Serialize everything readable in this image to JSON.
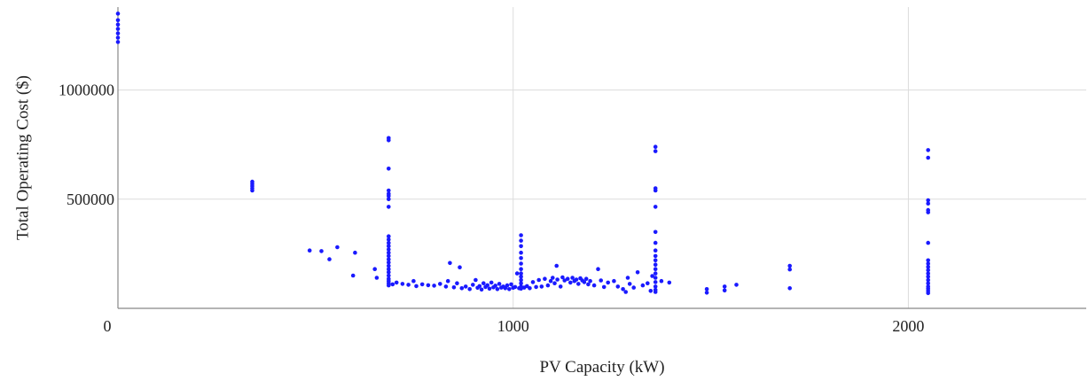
{
  "chart_data": {
    "type": "scatter",
    "xlabel": "PV Capacity (kW)",
    "ylabel": "Total Operating Cost ($)",
    "xlim": [
      0,
      2450
    ],
    "ylim": [
      0,
      1380000
    ],
    "x_ticks": [
      {
        "value": 0,
        "label": "0"
      },
      {
        "value": 1000,
        "label": "1000"
      },
      {
        "value": 2000,
        "label": "2000"
      }
    ],
    "y_ticks": [
      {
        "value": 500000,
        "label": "500000"
      },
      {
        "value": 1000000,
        "label": "1000000"
      }
    ],
    "grid": true,
    "series": [
      {
        "color": "#1a1aff",
        "points": [
          [
            0,
            1350000
          ],
          [
            0,
            1320000
          ],
          [
            0,
            1300000
          ],
          [
            0,
            1280000
          ],
          [
            0,
            1260000
          ],
          [
            0,
            1240000
          ],
          [
            0,
            1220000
          ],
          [
            340,
            580000
          ],
          [
            340,
            570000
          ],
          [
            340,
            560000
          ],
          [
            340,
            550000
          ],
          [
            340,
            540000
          ],
          [
            485,
            265000
          ],
          [
            515,
            262000
          ],
          [
            535,
            225000
          ],
          [
            555,
            280000
          ],
          [
            595,
            150000
          ],
          [
            600,
            255000
          ],
          [
            650,
            180000
          ],
          [
            655,
            140000
          ],
          [
            685,
            780000
          ],
          [
            685,
            770000
          ],
          [
            685,
            640000
          ],
          [
            685,
            540000
          ],
          [
            685,
            525000
          ],
          [
            685,
            515000
          ],
          [
            685,
            500000
          ],
          [
            685,
            465000
          ],
          [
            685,
            330000
          ],
          [
            685,
            315000
          ],
          [
            685,
            300000
          ],
          [
            685,
            285000
          ],
          [
            685,
            270000
          ],
          [
            685,
            255000
          ],
          [
            685,
            240000
          ],
          [
            685,
            225000
          ],
          [
            685,
            210000
          ],
          [
            685,
            195000
          ],
          [
            685,
            180000
          ],
          [
            685,
            165000
          ],
          [
            685,
            150000
          ],
          [
            685,
            135000
          ],
          [
            685,
            125000
          ],
          [
            685,
            115000
          ],
          [
            685,
            105000
          ],
          [
            695,
            110000
          ],
          [
            705,
            118000
          ],
          [
            720,
            112000
          ],
          [
            735,
            108000
          ],
          [
            748,
            125000
          ],
          [
            755,
            102000
          ],
          [
            770,
            110000
          ],
          [
            785,
            106000
          ],
          [
            800,
            104000
          ],
          [
            815,
            112000
          ],
          [
            830,
            100000
          ],
          [
            835,
            125000
          ],
          [
            840,
            208000
          ],
          [
            850,
            96000
          ],
          [
            858,
            115000
          ],
          [
            865,
            188000
          ],
          [
            870,
            92000
          ],
          [
            880,
            100000
          ],
          [
            890,
            88000
          ],
          [
            898,
            108000
          ],
          [
            905,
            130000
          ],
          [
            910,
            94000
          ],
          [
            915,
            102000
          ],
          [
            920,
            86000
          ],
          [
            925,
            115000
          ],
          [
            930,
            98000
          ],
          [
            935,
            106000
          ],
          [
            940,
            90000
          ],
          [
            945,
            118000
          ],
          [
            950,
            96000
          ],
          [
            955,
            104000
          ],
          [
            960,
            88000
          ],
          [
            965,
            112000
          ],
          [
            970,
            95000
          ],
          [
            975,
            100000
          ],
          [
            980,
            92000
          ],
          [
            985,
            105000
          ],
          [
            990,
            88000
          ],
          [
            995,
            110000
          ],
          [
            1000,
            94000
          ],
          [
            1005,
            98000
          ],
          [
            1010,
            160000
          ],
          [
            1015,
            92000
          ],
          [
            1020,
            335000
          ],
          [
            1020,
            310000
          ],
          [
            1020,
            285000
          ],
          [
            1020,
            255000
          ],
          [
            1020,
            230000
          ],
          [
            1020,
            205000
          ],
          [
            1020,
            180000
          ],
          [
            1020,
            160000
          ],
          [
            1020,
            145000
          ],
          [
            1020,
            130000
          ],
          [
            1020,
            115000
          ],
          [
            1020,
            100000
          ],
          [
            1020,
            90000
          ],
          [
            1028,
            95000
          ],
          [
            1035,
            102000
          ],
          [
            1042,
            92000
          ],
          [
            1050,
            120000
          ],
          [
            1058,
            98000
          ],
          [
            1065,
            130000
          ],
          [
            1072,
            100000
          ],
          [
            1080,
            135000
          ],
          [
            1088,
            105000
          ],
          [
            1095,
            125000
          ],
          [
            1100,
            140000
          ],
          [
            1105,
            115000
          ],
          [
            1110,
            195000
          ],
          [
            1112,
            132000
          ],
          [
            1120,
            100000
          ],
          [
            1125,
            142000
          ],
          [
            1130,
            128000
          ],
          [
            1138,
            135000
          ],
          [
            1145,
            118000
          ],
          [
            1150,
            140000
          ],
          [
            1155,
            125000
          ],
          [
            1160,
            132000
          ],
          [
            1165,
            112000
          ],
          [
            1170,
            138000
          ],
          [
            1175,
            128000
          ],
          [
            1180,
            120000
          ],
          [
            1185,
            135000
          ],
          [
            1190,
            110000
          ],
          [
            1195,
            125000
          ],
          [
            1205,
            105000
          ],
          [
            1215,
            180000
          ],
          [
            1222,
            128000
          ],
          [
            1230,
            98000
          ],
          [
            1240,
            118000
          ],
          [
            1255,
            125000
          ],
          [
            1265,
            100000
          ],
          [
            1278,
            88000
          ],
          [
            1285,
            75000
          ],
          [
            1290,
            140000
          ],
          [
            1295,
            112000
          ],
          [
            1305,
            95000
          ],
          [
            1315,
            165000
          ],
          [
            1328,
            105000
          ],
          [
            1340,
            115000
          ],
          [
            1348,
            80000
          ],
          [
            1352,
            148000
          ],
          [
            1360,
            740000
          ],
          [
            1360,
            720000
          ],
          [
            1360,
            550000
          ],
          [
            1360,
            540000
          ],
          [
            1360,
            465000
          ],
          [
            1360,
            350000
          ],
          [
            1360,
            300000
          ],
          [
            1360,
            265000
          ],
          [
            1360,
            240000
          ],
          [
            1360,
            220000
          ],
          [
            1360,
            200000
          ],
          [
            1360,
            180000
          ],
          [
            1360,
            160000
          ],
          [
            1360,
            140000
          ],
          [
            1360,
            120000
          ],
          [
            1360,
            100000
          ],
          [
            1360,
            85000
          ],
          [
            1360,
            75000
          ],
          [
            1375,
            125000
          ],
          [
            1395,
            118000
          ],
          [
            1490,
            88000
          ],
          [
            1490,
            72000
          ],
          [
            1535,
            100000
          ],
          [
            1535,
            82000
          ],
          [
            1565,
            108000
          ],
          [
            1700,
            195000
          ],
          [
            1700,
            178000
          ],
          [
            1700,
            92000
          ],
          [
            2050,
            725000
          ],
          [
            2050,
            690000
          ],
          [
            2050,
            495000
          ],
          [
            2050,
            480000
          ],
          [
            2050,
            450000
          ],
          [
            2050,
            440000
          ],
          [
            2050,
            300000
          ],
          [
            2050,
            220000
          ],
          [
            2050,
            205000
          ],
          [
            2050,
            190000
          ],
          [
            2050,
            175000
          ],
          [
            2050,
            160000
          ],
          [
            2050,
            145000
          ],
          [
            2050,
            130000
          ],
          [
            2050,
            115000
          ],
          [
            2050,
            100000
          ],
          [
            2050,
            90000
          ],
          [
            2050,
            80000
          ],
          [
            2050,
            70000
          ]
        ]
      }
    ]
  }
}
